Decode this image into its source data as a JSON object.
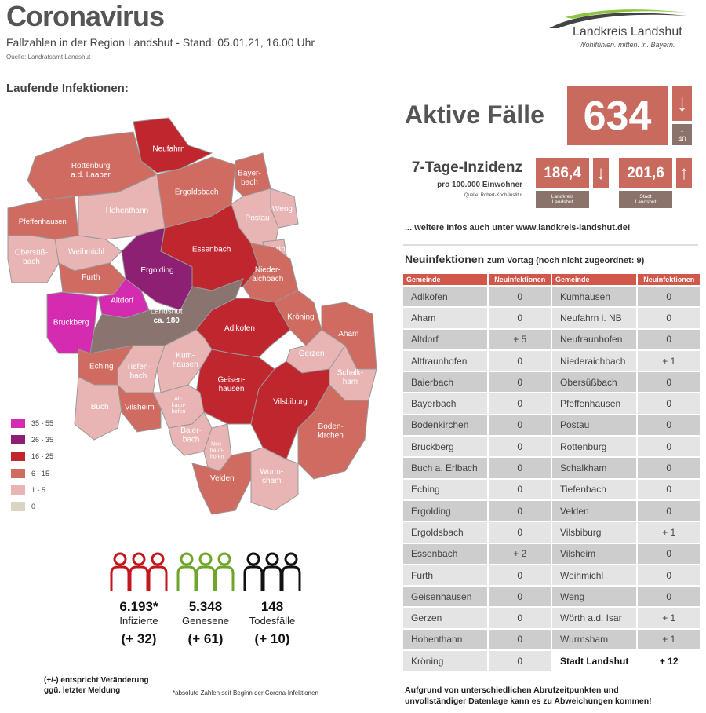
{
  "header": {
    "title": "Coronavirus",
    "subtitle": "Fallzahlen in der Region Landshut - Stand: 05.01.21, 16.00 Uhr",
    "source": "Quelle: Landratsamt Landshut"
  },
  "logo": {
    "name": "Landkreis Landshut",
    "slogan": "Wohlfühlen. mitten. in. Bayern."
  },
  "map": {
    "title": "Laufende Infektionen:",
    "regions": [
      {
        "label": "Neufahrn",
        "cat": 2
      },
      {
        "label": "Rottenburg\na.d. Laaber",
        "cat": 3
      },
      {
        "label": "Pfeffenhausen",
        "cat": 3
      },
      {
        "label": "Hohenthann",
        "cat": 4
      },
      {
        "label": "Ergoldsbach",
        "cat": 3
      },
      {
        "label": "Bayer-\nbach",
        "cat": 3
      },
      {
        "label": "Weng",
        "cat": 4
      },
      {
        "label": "Postau",
        "cat": 4
      },
      {
        "label": "Wörth",
        "cat": 4
      },
      {
        "label": "Essenbach",
        "cat": 2
      },
      {
        "label": "Weihmichl",
        "cat": 4
      },
      {
        "label": "Obersüß-\nbach",
        "cat": 4
      },
      {
        "label": "Furth",
        "cat": 3
      },
      {
        "label": "Ergolding",
        "cat": 1
      },
      {
        "label": "Bruckberg",
        "cat": 0
      },
      {
        "label": "Altdorf",
        "cat": 0
      },
      {
        "label": "Landshut\nca. 180",
        "cat": 6
      },
      {
        "label": "Nieder-\naichbach",
        "cat": 3
      },
      {
        "label": "Adlkofen",
        "cat": 2
      },
      {
        "label": "Kröning",
        "cat": 3
      },
      {
        "label": "Aham",
        "cat": 3
      },
      {
        "label": "Gerzen",
        "cat": 4
      },
      {
        "label": "Schalk-\nham",
        "cat": 4
      },
      {
        "label": "Eching",
        "cat": 3
      },
      {
        "label": "Tiefen-\nbach",
        "cat": 4
      },
      {
        "label": "Kum-\nhausen",
        "cat": 4
      },
      {
        "label": "Geisen-\nhausen",
        "cat": 2
      },
      {
        "label": "Vilsbiburg",
        "cat": 2
      },
      {
        "label": "Buch",
        "cat": 4
      },
      {
        "label": "Vilsheim",
        "cat": 3
      },
      {
        "label": "Alt-\nfraun-\nhofen",
        "cat": 4
      },
      {
        "label": "Boden-\nkirchen",
        "cat": 3
      },
      {
        "label": "Baier-\nbach",
        "cat": 4
      },
      {
        "label": "Neu-\nfraun-\nhofen",
        "cat": 4
      },
      {
        "label": "Velden",
        "cat": 3
      },
      {
        "label": "Wurm-\nsham",
        "cat": 4
      }
    ]
  },
  "legend": [
    {
      "label": "35 - 55",
      "color": "#d42bb0"
    },
    {
      "label": "26 - 35",
      "color": "#8e2073"
    },
    {
      "label": "16 - 25",
      "color": "#c0262e"
    },
    {
      "label": "6 - 15",
      "color": "#cf6b60"
    },
    {
      "label": "1 - 5",
      "color": "#e8b4b4"
    },
    {
      "label": "0",
      "color": "#d9d4c4"
    },
    {
      "color": "#8a7470"
    }
  ],
  "stats": [
    {
      "value": "6.193*",
      "label": "Infizierte",
      "change": "(+ 32)",
      "color": "#c3151c"
    },
    {
      "value": "5.348",
      "label": "Genesene",
      "change": "(+ 61)",
      "color": "#6fa52b"
    },
    {
      "value": "148",
      "label": "Todesfälle",
      "change": "(+ 10)",
      "color": "#111111"
    }
  ],
  "notes": {
    "change": "(+/-) entspricht Veränderung\nggü. letzter Meldung",
    "absolute": "*absolute Zahlen seit Beginn der Corona-Infektionen"
  },
  "active": {
    "title": "Aktive Fälle",
    "value": "634",
    "arrow": "↓",
    "change_sign": "-",
    "change": "40"
  },
  "incidence": {
    "title": "7-Tage-Inzidenz",
    "sub": "pro 100.000 Einwohner",
    "source": "Quelle: Robert-Koch-Institut",
    "landkreis": {
      "value": "186,4",
      "arrow": "↓",
      "label": "Landkreis\nLandshut"
    },
    "stadt": {
      "value": "201,6",
      "arrow": "↑",
      "label": "Stadt\nLandshut"
    }
  },
  "more_info": "... weitere Infos auch unter www.landkreis-landshut.de!",
  "new": {
    "title": "Neuinfektionen",
    "sub": "zum Vortag (noch nicht zugeordnet: 9)",
    "headers": [
      "Gemeinde",
      "Neuinfektionen",
      "Gemeinde",
      "Neuinfektionen"
    ],
    "rows": [
      [
        "Adlkofen",
        "0",
        "Kumhausen",
        "0"
      ],
      [
        "Aham",
        "0",
        "Neufahrn i. NB",
        "0"
      ],
      [
        "Altdorf",
        "+ 5",
        "Neufraunhofen",
        "0"
      ],
      [
        "Altfraunhofen",
        "0",
        "Niederaichbach",
        "+ 1"
      ],
      [
        "Baierbach",
        "0",
        "Obersüßbach",
        "0"
      ],
      [
        "Bayerbach",
        "0",
        "Pfeffenhausen",
        "0"
      ],
      [
        "Bodenkirchen",
        "0",
        "Postau",
        "0"
      ],
      [
        "Bruckberg",
        "0",
        "Rottenburg",
        "0"
      ],
      [
        "Buch a. Erlbach",
        "0",
        "Schalkham",
        "0"
      ],
      [
        "Eching",
        "0",
        "Tiefenbach",
        "0"
      ],
      [
        "Ergolding",
        "0",
        "Velden",
        "0"
      ],
      [
        "Ergoldsbach",
        "0",
        "Vilsbiburg",
        "+ 1"
      ],
      [
        "Essenbach",
        "+ 2",
        "Vilsheim",
        "0"
      ],
      [
        "Furth",
        "0",
        "Weihmichl",
        "0"
      ],
      [
        "Geisenhausen",
        "0",
        "Weng",
        "0"
      ],
      [
        "Gerzen",
        "0",
        "Wörth a.d. Isar",
        "+ 1"
      ],
      [
        "Hohenthann",
        "0",
        "Wurmsham",
        "+ 1"
      ],
      [
        "Kröning",
        "0",
        "Stadt Landshut",
        "+ 12"
      ]
    ]
  },
  "footer": "Aufgrund von unterschiedlichen Abrufzeitpunkten und\nunvollständiger Datenlage kann es zu Abweichungen kommen!"
}
